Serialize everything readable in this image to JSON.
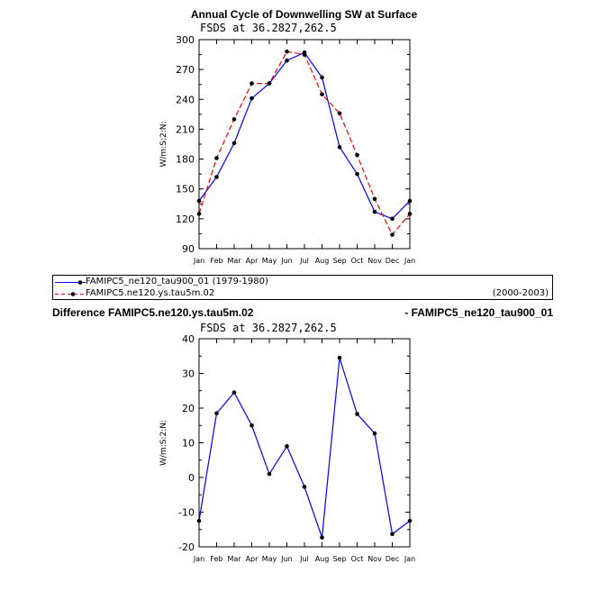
{
  "top": {
    "title": "Annual Cycle of Downwelling SW at Surface",
    "subtitle": "FSDS at 36.2827,262.5"
  },
  "legend": {
    "entries": [
      {
        "label": "FAMIPC5_ne120_tau900_01 (1979-1980)",
        "right": "",
        "color": "#0000ff",
        "style": "solid"
      },
      {
        "label": "FAMIPC5.ne120.ys.tau5m.02",
        "right": "(2000-2003)",
        "color": "#ff0000",
        "style": "dashed"
      }
    ]
  },
  "bottom": {
    "title_left": "Difference FAMIPC5.ne120.ys.tau5m.02",
    "title_right": "- FAMIPC5_ne120_tau900_01",
    "subtitle": "FSDS at 36.2827,262.5"
  },
  "chart_data": [
    {
      "type": "line",
      "title": "Annual Cycle of Downwelling SW at Surface",
      "subtitle": "FSDS at 36.2827,262.5",
      "ylabel": "W/m:S:2:N:",
      "categories": [
        "Jan",
        "Feb",
        "Mar",
        "Apr",
        "May",
        "Jun",
        "Jul",
        "Aug",
        "Sep",
        "Oct",
        "Nov",
        "Dec",
        "Jan"
      ],
      "ylim": [
        90,
        300
      ],
      "yticks": [
        90,
        120,
        150,
        180,
        210,
        240,
        270,
        300
      ],
      "series": [
        {
          "name": "FAMIPC5_ne120_tau900_01 (1979-1980)",
          "color": "#0000ff",
          "dashed": false,
          "values": [
            138,
            162,
            196,
            241,
            256,
            279,
            287,
            262,
            192,
            165,
            127,
            120,
            138
          ]
        },
        {
          "name": "FAMIPC5.ne120.ys.tau5m.02",
          "color": "#ff0000",
          "dashed": true,
          "values": [
            125,
            181,
            220,
            256,
            256,
            288,
            285,
            245,
            226,
            184,
            140,
            104,
            125
          ]
        }
      ]
    },
    {
      "type": "line",
      "title": "Difference FAMIPC5.ne120.ys.tau5m.02 - FAMIPC5_ne120_tau900_01",
      "subtitle": "FSDS at 36.2827,262.5",
      "ylabel": "W/m:S:2:N:",
      "categories": [
        "Jan",
        "Feb",
        "Mar",
        "Apr",
        "May",
        "Jun",
        "Jul",
        "Aug",
        "Sep",
        "Oct",
        "Nov",
        "Dec",
        "Jan"
      ],
      "ylim": [
        -20,
        40
      ],
      "yticks": [
        -20,
        -10,
        0,
        10,
        20,
        30,
        40
      ],
      "series": [
        {
          "color": "#0000ff",
          "dashed": false,
          "values": [
            -12.5,
            18.5,
            24.5,
            15,
            1,
            9,
            -2.7,
            -17.3,
            34.5,
            18.3,
            12.7,
            -16.3,
            -12.5
          ]
        }
      ]
    }
  ]
}
